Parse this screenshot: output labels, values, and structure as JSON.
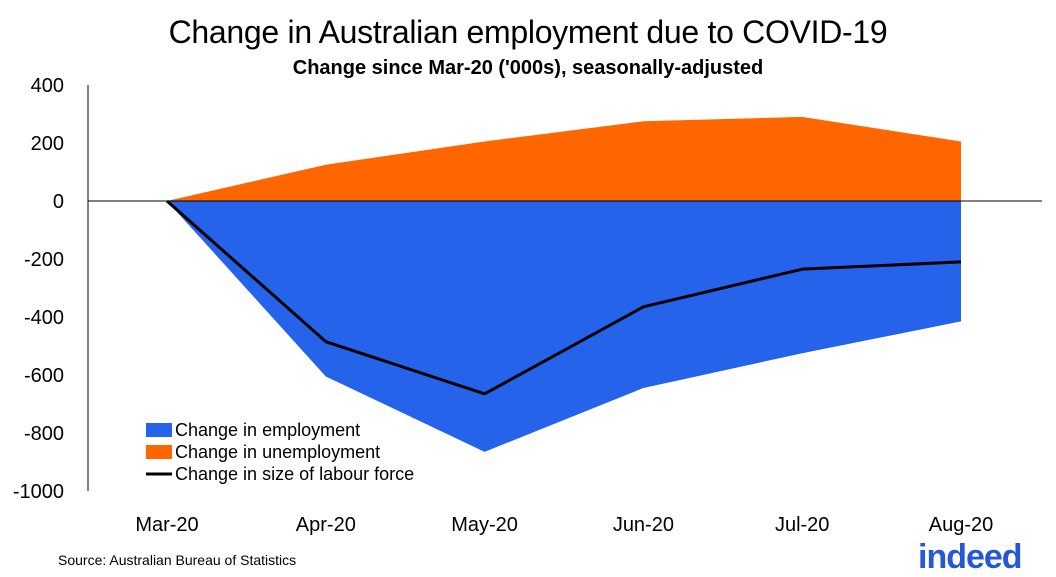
{
  "chart_data": {
    "type": "area",
    "title": "Change in Australian employment due to COVID-19",
    "subtitle": "Change since Mar-20 ('000s), seasonally-adjusted",
    "categories": [
      "Mar-20",
      "Apr-20",
      "May-20",
      "Jun-20",
      "Jul-20",
      "Aug-20"
    ],
    "series": [
      {
        "name": "Change in employment",
        "kind": "area",
        "color": "#2563eb",
        "values": [
          0,
          -605,
          -865,
          -645,
          -525,
          -415
        ]
      },
      {
        "name": "Change in unemployment",
        "kind": "area",
        "color": "#ff6600",
        "values": [
          0,
          125,
          205,
          275,
          290,
          205
        ]
      },
      {
        "name": "Change in size of labour force",
        "kind": "line",
        "color": "#000000",
        "values": [
          0,
          -485,
          -665,
          -365,
          -235,
          -210
        ]
      }
    ],
    "ylim": [
      -1000,
      400
    ],
    "yticks": [
      400,
      200,
      0,
      -200,
      -400,
      -600,
      -800,
      -1000
    ],
    "legend_position": "bottom-left",
    "grid": false
  },
  "source": "Source: Australian Bureau of Statistics",
  "logo_text": "indeed"
}
